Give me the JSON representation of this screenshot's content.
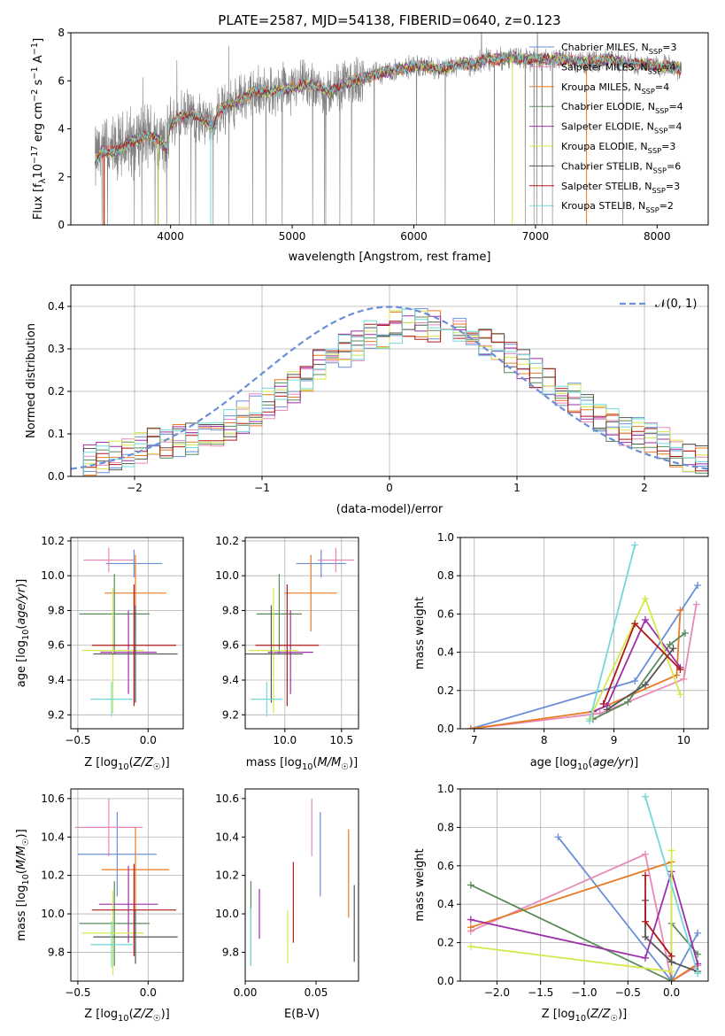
{
  "chart_data": [
    {
      "id": "spectrum",
      "type": "line",
      "title": "PLATE=2587, MJD=54138, FIBERID=0640, z=0.123",
      "xlabel": "wavelength [Angstrom, rest frame]",
      "ylabel": "Flux [f_λ 10^-17 erg cm^-2 s^-1 A^-1]",
      "xlim": [
        3180,
        8420
      ],
      "ylim": [
        0,
        8
      ],
      "xticks": [
        4000,
        5000,
        6000,
        7000,
        8000
      ],
      "yticks": [
        0,
        2,
        4,
        6,
        8
      ],
      "grid": false,
      "legend_position": "top-right",
      "continuum": {
        "x": [
          3380,
          3450,
          3550,
          3650,
          3700,
          3800,
          3900,
          3970,
          4000,
          4100,
          4200,
          4300,
          4350,
          4400,
          4500,
          4600,
          4700,
          4800,
          4900,
          5000,
          5100,
          5200,
          5300,
          5400,
          5500,
          5600,
          5700,
          5800,
          5900,
          6000,
          6100,
          6200,
          6300,
          6400,
          6500,
          6600,
          6700,
          6800,
          6900,
          7000,
          7100,
          7200,
          7300,
          7400,
          7500,
          7600,
          7700,
          7800,
          7900,
          8000,
          8100,
          8200
        ],
        "y": [
          2.7,
          3.1,
          3.0,
          3.4,
          3.5,
          3.7,
          3.6,
          3.2,
          4.2,
          4.5,
          4.6,
          4.3,
          4.0,
          4.8,
          5.0,
          5.3,
          5.6,
          5.5,
          5.6,
          5.7,
          5.8,
          5.8,
          5.5,
          5.8,
          6.0,
          6.1,
          6.3,
          6.4,
          6.5,
          6.6,
          6.6,
          6.5,
          6.6,
          6.7,
          6.7,
          6.9,
          6.9,
          7.0,
          6.9,
          6.9,
          6.9,
          6.9,
          6.8,
          6.8,
          6.8,
          6.9,
          6.8,
          6.7,
          6.7,
          6.6,
          6.6,
          6.5
        ]
      },
      "series": [
        {
          "name": "Chabrier MILES",
          "nssp": "3",
          "color": "#6b8fd6"
        },
        {
          "name": "Salpeter MILES",
          "nssp": "4",
          "color": "#e889b7"
        },
        {
          "name": "Kroupa MILES",
          "nssp": "4",
          "color": "#e87a24"
        },
        {
          "name": "Chabrier ELODIE",
          "nssp": "4",
          "color": "#5b8a5b"
        },
        {
          "name": "Salpeter ELODIE",
          "nssp": "4",
          "color": "#9b30a8"
        },
        {
          "name": "Kroupa ELODIE",
          "nssp": "3",
          "color": "#d5e84a"
        },
        {
          "name": "Chabrier STELIB",
          "nssp": "6",
          "color": "#555555"
        },
        {
          "name": "Salpeter STELIB",
          "nssp": "3",
          "color": "#b01919"
        },
        {
          "name": "Kroupa STELIB",
          "nssp": "2",
          "color": "#72d8d8"
        }
      ],
      "data_color": "#808080"
    },
    {
      "id": "residuals",
      "type": "histogram",
      "xlabel": "(data-model)/error",
      "ylabel": "Normed distribution",
      "xlim": [
        -2.5,
        2.5
      ],
      "ylim": [
        0,
        0.45
      ],
      "xticks": [
        -2,
        -1,
        0,
        1,
        2
      ],
      "yticks": [
        0.0,
        0.1,
        0.2,
        0.3,
        0.4
      ],
      "grid": true,
      "legend_position": "top-right",
      "reference_curve": {
        "name": "𝒩(0, 1)",
        "color": "#6b8fd6",
        "style": "dashed"
      },
      "bins": {
        "start": -2.5,
        "width": 0.1,
        "count": 50
      },
      "envelope": [
        0.035,
        0.04,
        0.045,
        0.05,
        0.06,
        0.07,
        0.075,
        0.08,
        0.085,
        0.09,
        0.1,
        0.11,
        0.125,
        0.14,
        0.155,
        0.17,
        0.19,
        0.21,
        0.235,
        0.26,
        0.28,
        0.295,
        0.31,
        0.33,
        0.34,
        0.35,
        0.36,
        0.355,
        0.35,
        0.36,
        0.34,
        0.33,
        0.32,
        0.3,
        0.28,
        0.26,
        0.24,
        0.22,
        0.2,
        0.18,
        0.16,
        0.14,
        0.12,
        0.11,
        0.1,
        0.09,
        0.08,
        0.06,
        0.05,
        0.04
      ]
    },
    {
      "id": "age-vs-Z",
      "type": "errorbar",
      "xlabel": "Z [log10(Z/Z☉)]",
      "ylabel": "age  [log10(age/yr)]",
      "xlim": [
        -0.55,
        0.25
      ],
      "ylim": [
        9.12,
        10.22
      ],
      "xticks": [
        -0.5,
        0.0
      ],
      "yticks": [
        9.2,
        9.4,
        9.6,
        9.8,
        10.0,
        10.2
      ],
      "grid": true,
      "points": [
        {
          "x": -0.1,
          "y": 10.07,
          "xerr": 0.2,
          "yerr": 0.08,
          "color": "#6b8fd6"
        },
        {
          "x": -0.28,
          "y": 10.09,
          "xerr": 0.18,
          "yerr": 0.07,
          "color": "#e889b7"
        },
        {
          "x": -0.09,
          "y": 9.9,
          "xerr": 0.22,
          "yerr": 0.22,
          "color": "#e87a24"
        },
        {
          "x": -0.24,
          "y": 9.78,
          "xerr": 0.25,
          "yerr": 0.23,
          "color": "#5b8a5b"
        },
        {
          "x": -0.14,
          "y": 9.56,
          "xerr": 0.2,
          "yerr": 0.24,
          "color": "#9b30a8"
        },
        {
          "x": -0.25,
          "y": 9.57,
          "xerr": 0.22,
          "yerr": 0.36,
          "color": "#d5e84a"
        },
        {
          "x": -0.09,
          "y": 9.55,
          "xerr": 0.3,
          "yerr": 0.28,
          "color": "#555555"
        },
        {
          "x": -0.1,
          "y": 9.6,
          "xerr": 0.3,
          "yerr": 0.35,
          "color": "#b01919"
        },
        {
          "x": -0.26,
          "y": 9.29,
          "xerr": 0.15,
          "yerr": 0.1,
          "color": "#72d8d8"
        }
      ]
    },
    {
      "id": "age-vs-mass",
      "type": "errorbar",
      "xlabel": "mass [log10(M/M☉)]",
      "ylabel": "",
      "xlim": [
        9.65,
        10.65
      ],
      "ylim": [
        9.12,
        10.22
      ],
      "xticks": [
        10.0,
        10.5
      ],
      "yticks": [
        9.2,
        9.4,
        9.6,
        9.8,
        10.0,
        10.2
      ],
      "grid": true,
      "points": [
        {
          "x": 10.32,
          "y": 10.07,
          "xerr": 0.22,
          "yerr": 0.08,
          "color": "#6b8fd6"
        },
        {
          "x": 10.45,
          "y": 10.09,
          "xerr": 0.16,
          "yerr": 0.07,
          "color": "#e889b7"
        },
        {
          "x": 10.23,
          "y": 9.9,
          "xerr": 0.23,
          "yerr": 0.22,
          "color": "#e87a24"
        },
        {
          "x": 9.95,
          "y": 9.78,
          "xerr": 0.2,
          "yerr": 0.23,
          "color": "#5b8a5b"
        },
        {
          "x": 10.05,
          "y": 9.56,
          "xerr": 0.2,
          "yerr": 0.24,
          "color": "#9b30a8"
        },
        {
          "x": 9.9,
          "y": 9.57,
          "xerr": 0.22,
          "yerr": 0.36,
          "color": "#d5e84a"
        },
        {
          "x": 9.88,
          "y": 9.55,
          "xerr": 0.28,
          "yerr": 0.28,
          "color": "#555555"
        },
        {
          "x": 10.02,
          "y": 9.6,
          "xerr": 0.28,
          "yerr": 0.35,
          "color": "#b01919"
        },
        {
          "x": 9.84,
          "y": 9.29,
          "xerr": 0.14,
          "yerr": 0.1,
          "color": "#72d8d8"
        }
      ]
    },
    {
      "id": "weight-vs-age",
      "type": "line",
      "xlabel": "age  [log10(age/yr)]",
      "ylabel": "mass weight",
      "xlim": [
        6.8,
        10.35
      ],
      "ylim": [
        0,
        1
      ],
      "xticks": [
        7,
        8,
        9,
        10
      ],
      "yticks": [
        0.0,
        0.2,
        0.4,
        0.6,
        0.8,
        1.0
      ],
      "grid": true,
      "series": [
        {
          "color": "#6b8fd6",
          "x": [
            6.95,
            9.3,
            10.2
          ],
          "y": [
            0.0,
            0.25,
            0.75
          ]
        },
        {
          "color": "#e889b7",
          "x": [
            6.95,
            8.8,
            10.0,
            10.18
          ],
          "y": [
            0.0,
            0.08,
            0.26,
            0.65
          ]
        },
        {
          "color": "#e87a24",
          "x": [
            6.95,
            8.7,
            9.9,
            9.95
          ],
          "y": [
            0.0,
            0.09,
            0.28,
            0.62
          ]
        },
        {
          "color": "#5b8a5b",
          "x": [
            8.7,
            9.2,
            9.8,
            10.02
          ],
          "y": [
            0.05,
            0.14,
            0.44,
            0.5
          ]
        },
        {
          "color": "#9b30a8",
          "x": [
            8.7,
            8.9,
            9.45,
            9.95
          ],
          "y": [
            0.09,
            0.12,
            0.57,
            0.32
          ]
        },
        {
          "color": "#d5e84a",
          "x": [
            8.65,
            9.45,
            9.95
          ],
          "y": [
            0.05,
            0.68,
            0.18
          ]
        },
        {
          "color": "#555555",
          "x": [
            8.9,
            9.45,
            9.85
          ],
          "y": [
            0.1,
            0.23,
            0.42
          ]
        },
        {
          "color": "#b01919",
          "x": [
            8.85,
            9.3,
            9.95
          ],
          "y": [
            0.13,
            0.55,
            0.31
          ]
        },
        {
          "color": "#72d8d8",
          "x": [
            8.65,
            9.3
          ],
          "y": [
            0.04,
            0.96
          ]
        }
      ]
    },
    {
      "id": "mass-vs-Z",
      "type": "errorbar",
      "xlabel": "Z [log10(Z/Z☉)]",
      "ylabel": "mass [log10(M/M☉)]",
      "xlim": [
        -0.55,
        0.25
      ],
      "ylim": [
        9.65,
        10.65
      ],
      "xticks": [
        -0.5,
        0.0
      ],
      "yticks": [
        9.8,
        10.0,
        10.2,
        10.4,
        10.6
      ],
      "grid": true,
      "points": [
        {
          "x": -0.22,
          "y": 10.31,
          "xerr": 0.28,
          "yerr": 0.22,
          "color": "#6b8fd6"
        },
        {
          "x": -0.28,
          "y": 10.45,
          "xerr": 0.24,
          "yerr": 0.15,
          "color": "#e889b7"
        },
        {
          "x": -0.09,
          "y": 10.23,
          "xerr": 0.24,
          "yerr": 0.22,
          "color": "#e87a24"
        },
        {
          "x": -0.24,
          "y": 9.95,
          "xerr": 0.25,
          "yerr": 0.22,
          "color": "#5b8a5b"
        },
        {
          "x": -0.14,
          "y": 10.05,
          "xerr": 0.21,
          "yerr": 0.2,
          "color": "#9b30a8"
        },
        {
          "x": -0.25,
          "y": 9.9,
          "xerr": 0.22,
          "yerr": 0.22,
          "color": "#d5e84a"
        },
        {
          "x": -0.09,
          "y": 9.88,
          "xerr": 0.3,
          "yerr": 0.14,
          "color": "#555555"
        },
        {
          "x": -0.1,
          "y": 10.02,
          "xerr": 0.3,
          "yerr": 0.24,
          "color": "#b01919"
        },
        {
          "x": -0.26,
          "y": 9.84,
          "xerr": 0.15,
          "yerr": 0.12,
          "color": "#72d8d8"
        }
      ]
    },
    {
      "id": "mass-vs-ebv",
      "type": "errorbar",
      "xlabel": "E(B-V)",
      "ylabel": "",
      "xlim": [
        0.0,
        0.08
      ],
      "ylim": [
        9.65,
        10.65
      ],
      "xticks": [
        0.0,
        0.05
      ],
      "tick_labels_x": [
        "0.00",
        "0.05"
      ],
      "yticks": [
        9.8,
        10.0,
        10.2,
        10.4,
        10.6
      ],
      "grid": false,
      "points": [
        {
          "x": 0.053,
          "y": 10.31,
          "yerr": 0.22,
          "color": "#6b8fd6"
        },
        {
          "x": 0.047,
          "y": 10.45,
          "yerr": 0.15,
          "color": "#e889b7"
        },
        {
          "x": 0.073,
          "y": 10.21,
          "yerr": 0.23,
          "color": "#e87a24"
        },
        {
          "x": 0.004,
          "y": 9.95,
          "yerr": 0.22,
          "color": "#5b8a5b"
        },
        {
          "x": 0.01,
          "y": 10.0,
          "yerr": 0.13,
          "color": "#9b30a8"
        },
        {
          "x": 0.03,
          "y": 9.88,
          "yerr": 0.14,
          "color": "#d5e84a"
        },
        {
          "x": 0.077,
          "y": 9.95,
          "yerr": 0.2,
          "color": "#555555"
        },
        {
          "x": 0.034,
          "y": 10.06,
          "yerr": 0.21,
          "color": "#b01919"
        },
        {
          "x": 0.004,
          "y": 9.88,
          "yerr": 0.15,
          "color": "#72d8d8"
        }
      ]
    },
    {
      "id": "weight-vs-Z",
      "type": "line",
      "xlabel": "Z [log10(Z/Z☉)]",
      "ylabel": "mass weight",
      "xlim": [
        -2.42,
        0.42
      ],
      "ylim": [
        0,
        1
      ],
      "xticks": [
        -2.0,
        -1.5,
        -1.0,
        -0.5,
        0.0
      ],
      "yticks": [
        0.0,
        0.2,
        0.4,
        0.6,
        0.8,
        1.0
      ],
      "grid": true,
      "series": [
        {
          "color": "#6b8fd6",
          "x": [
            -1.3,
            0.0,
            0.3
          ],
          "y": [
            0.75,
            0.0,
            0.25
          ]
        },
        {
          "color": "#e889b7",
          "x": [
            -2.3,
            -0.3,
            0.0,
            0.3
          ],
          "y": [
            0.26,
            0.66,
            0.0,
            0.08
          ]
        },
        {
          "color": "#e87a24",
          "x": [
            -2.3,
            0.0,
            0.0,
            0.3
          ],
          "y": [
            0.28,
            0.62,
            0.0,
            0.09
          ]
        },
        {
          "color": "#5b8a5b",
          "x": [
            -2.3,
            0.0,
            0.0,
            0.3
          ],
          "y": [
            0.5,
            0.0,
            0.3,
            0.14
          ]
        },
        {
          "color": "#9b30a8",
          "x": [
            -2.3,
            -0.3,
            0.0,
            0.3
          ],
          "y": [
            0.32,
            0.12,
            0.57,
            0.09
          ]
        },
        {
          "color": "#d5e84a",
          "x": [
            -2.3,
            0.0,
            0.0
          ],
          "y": [
            0.18,
            0.05,
            0.68
          ]
        },
        {
          "color": "#555555",
          "x": [
            -0.3,
            -0.3,
            0.0,
            0.3
          ],
          "y": [
            0.42,
            0.23,
            0.1,
            0.05
          ]
        },
        {
          "color": "#b01919",
          "x": [
            -0.3,
            -0.3,
            0.0
          ],
          "y": [
            0.55,
            0.31,
            0.13
          ]
        },
        {
          "color": "#72d8d8",
          "x": [
            -0.3,
            0.3
          ],
          "y": [
            0.96,
            0.04
          ]
        }
      ]
    }
  ]
}
